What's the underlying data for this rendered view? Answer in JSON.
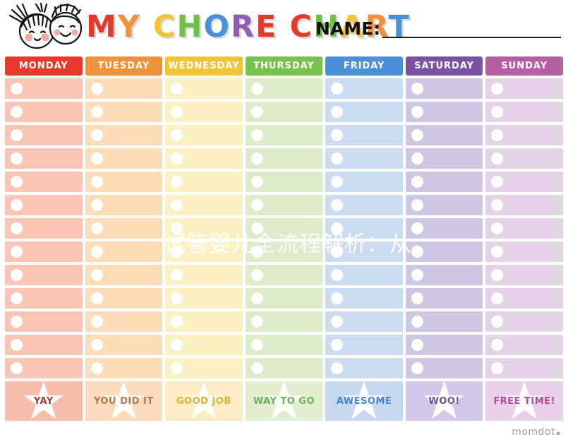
{
  "header": {
    "title_text": "MY CHORE CHART",
    "title_letters": [
      {
        "ch": "M",
        "color": "#e23b2e"
      },
      {
        "ch": "Y",
        "color": "#f0913c"
      },
      {
        "ch": " ",
        "color": "#000000"
      },
      {
        "ch": "C",
        "color": "#f2c334"
      },
      {
        "ch": "H",
        "color": "#72bf44"
      },
      {
        "ch": "O",
        "color": "#4a90d9"
      },
      {
        "ch": "R",
        "color": "#8e5fae"
      },
      {
        "ch": "E",
        "color": "#e23b2e"
      },
      {
        "ch": " ",
        "color": "#000000"
      },
      {
        "ch": "C",
        "color": "#e23b2e"
      },
      {
        "ch": "H",
        "color": "#72bf44"
      },
      {
        "ch": "A",
        "color": "#f2c334"
      },
      {
        "ch": "R",
        "color": "#f0913c"
      },
      {
        "ch": "T",
        "color": "#4a90d9"
      }
    ],
    "name_label": "NAME:",
    "kids_illustration": "two-kids-faces",
    "cheek_color": "#f2a9a2",
    "line_color": "#1c1c1c"
  },
  "chart": {
    "rows_per_day": 13,
    "header_text_color": "#ffffff",
    "checkbox_color": "#ffffff",
    "star_color": "#ffffff",
    "days": [
      {
        "name": "MONDAY",
        "header_bg": "#e8392b",
        "row_bg": "#f9c6b6",
        "footer_bg": "#f8bcab",
        "footer_label": "YAY",
        "footer_label_color": "#a93b31"
      },
      {
        "name": "TUESDAY",
        "header_bg": "#f0913c",
        "row_bg": "#fbdcb6",
        "footer_bg": "#fcdcbc",
        "footer_label": "YOU DID IT",
        "footer_label_color": "#b5764a"
      },
      {
        "name": "WEDNESDAY",
        "header_bg": "#f2c334",
        "row_bg": "#fbf0c2",
        "footer_bg": "#faedc3",
        "footer_label": "GOOD JOB",
        "footer_label_color": "#ddaf35"
      },
      {
        "name": "THURSDAY",
        "header_bg": "#77c24c",
        "row_bg": "#dcebc9",
        "footer_bg": "#e2edd2",
        "footer_label": "WAY TO GO",
        "footer_label_color": "#67b54e"
      },
      {
        "name": "FRIDAY",
        "header_bg": "#4b8fd7",
        "row_bg": "#ccdcf0",
        "footer_bg": "#c6d8ee",
        "footer_label": "AWESOME",
        "footer_label_color": "#4a82cf"
      },
      {
        "name": "SATURDAY",
        "header_bg": "#7b52a3",
        "row_bg": "#cfc6e3",
        "footer_bg": "#d3c8e7",
        "footer_label": "WOO!",
        "footer_label_color": "#6950a0"
      },
      {
        "name": "SUNDAY",
        "header_bg": "#b75fa6",
        "row_bg": "#e4d2e6",
        "footer_bg": "#e7cfe7",
        "footer_label": "FREE TIME!",
        "footer_label_color": "#a94f9e"
      }
    ]
  },
  "watermark": {
    "text": "试管婴儿全流程解析：从"
  },
  "brand": {
    "text": "momdot"
  }
}
